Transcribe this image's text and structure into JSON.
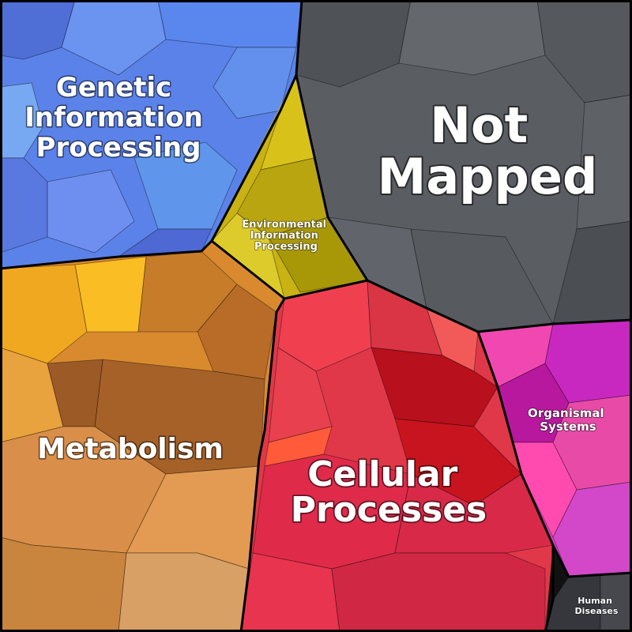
{
  "chart_data": {
    "type": "voronoi-treemap",
    "title": "",
    "regions": [
      {
        "key": "genetic",
        "label_lines": [
          "Genetic",
          "Information",
          "Processing"
        ],
        "color": "#5b82e8"
      },
      {
        "key": "environmental",
        "label_lines": [
          "Environmental",
          "Information",
          "Processing"
        ],
        "color": "#c8b214"
      },
      {
        "key": "not_mapped",
        "label_lines": [
          "Not",
          "Mapped"
        ],
        "color": "#5a5d62"
      },
      {
        "key": "metabolism",
        "label_lines": [
          "Metabolism"
        ],
        "color": "#d98a2e"
      },
      {
        "key": "cellular",
        "label_lines": [
          "Cellular",
          "Processes"
        ],
        "color": "#e03848"
      },
      {
        "key": "organismal",
        "label_lines": [
          "Organismal",
          "Systems"
        ],
        "color": "#d93fc0"
      },
      {
        "key": "human",
        "label_lines": [
          "Human",
          "Diseases"
        ],
        "color": "#3e4046"
      }
    ]
  }
}
